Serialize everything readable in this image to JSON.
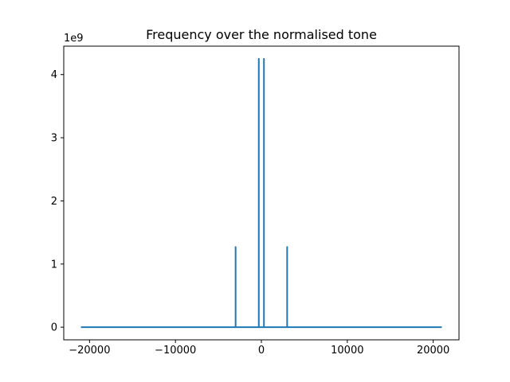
{
  "chart_data": {
    "type": "line",
    "title": "Frequency over the normalised tone",
    "xlabel": "",
    "ylabel": "",
    "y_offset_label": "1e9",
    "xlim": [
      -23000,
      23000
    ],
    "ylim": [
      -0.2,
      4.45
    ],
    "x_ticks": [
      -20000,
      -10000,
      0,
      10000,
      20000
    ],
    "x_tick_labels": [
      "−20000",
      "−10000",
      "0",
      "10000",
      "20000"
    ],
    "y_ticks": [
      0,
      1,
      2,
      3,
      4
    ],
    "y_tick_labels": [
      "0",
      "1",
      "2",
      "3",
      "4"
    ],
    "grid": false,
    "series": [
      {
        "color": "#1f77b4",
        "x": [
          -21000,
          -3000,
          -3000,
          -3000,
          -300,
          -300,
          -300,
          300,
          300,
          300,
          3000,
          3000,
          3000,
          21000
        ],
        "y": [
          0,
          0,
          1.27,
          0,
          0,
          4.25,
          0,
          0,
          4.25,
          0,
          0,
          1.27,
          0,
          0
        ]
      }
    ]
  }
}
